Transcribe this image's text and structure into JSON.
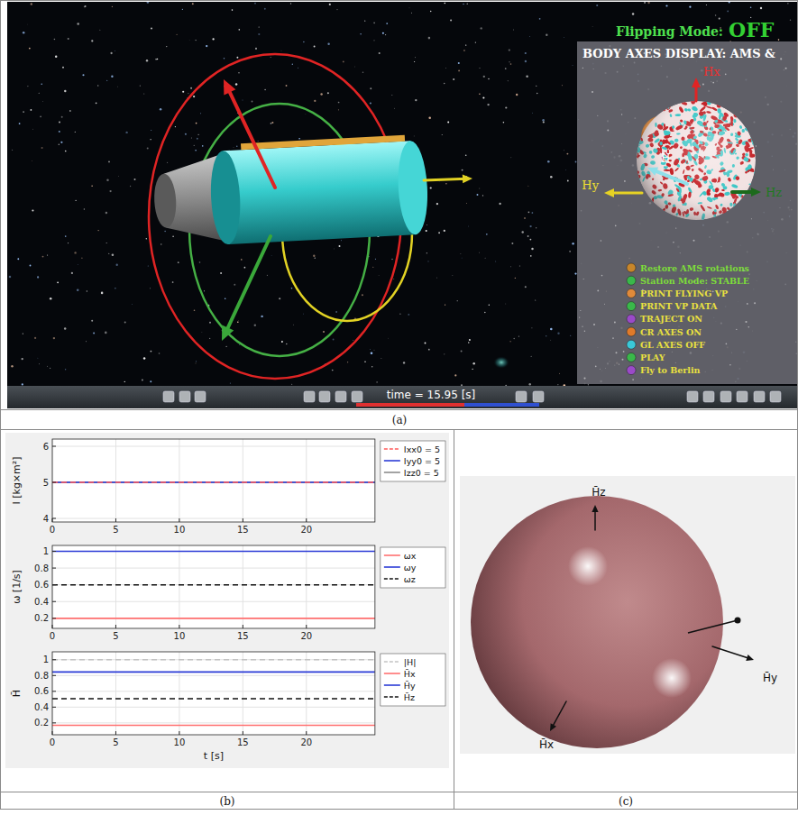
{
  "labels": {
    "a": "(a)",
    "b": "(b)",
    "c": "(c)"
  },
  "screenshot": {
    "flipping_label": "Flipping Mode:",
    "flipping_state": "OFF",
    "time_label": "time = 15.95 [s]",
    "body_axes": {
      "title": "BODY AXES DISPLAY: AMS &",
      "axis_labels": {
        "x": "Hx",
        "y": "Hy",
        "z": "Hz",
        "h": "H"
      },
      "menu": [
        "Restore AMS rotations",
        "Station Mode: STABLE",
        "PRINT FLYING VP",
        "PRINT VP DATA",
        "TRAJECT ON",
        "CR AXES ON",
        "GL AXES OFF",
        "PLAY",
        "Fly to Berlin"
      ]
    }
  },
  "chart_data": [
    {
      "type": "line",
      "ylabel": "I [kg×m²]",
      "x": [
        0,
        25.4
      ],
      "xlim": [
        0,
        25.4
      ],
      "xticks": [
        0,
        5,
        10,
        15,
        20
      ],
      "ylim": [
        3.9,
        6.2
      ],
      "yticks": [
        4,
        5,
        6
      ],
      "grid": true,
      "legend": "right",
      "series": [
        {
          "name": "Ixx0 = 5",
          "color": "#ff5a5a",
          "line_style": "dashed",
          "values": [
            5,
            5
          ]
        },
        {
          "name": "Iyy0 = 5",
          "color": "#2b3bd6",
          "line_style": "solid",
          "values": [
            5,
            5
          ]
        },
        {
          "name": "Izz0 = 5",
          "color": "#8c8c8c",
          "line_style": "solid",
          "values": [
            5,
            5
          ]
        }
      ]
    },
    {
      "type": "line",
      "ylabel": "ω [1/s]",
      "x": [
        0,
        25.4
      ],
      "xlim": [
        0,
        25.4
      ],
      "xticks": [
        0,
        5,
        10,
        15,
        20
      ],
      "ylim": [
        0.08,
        1.07
      ],
      "yticks": [
        0.2,
        0.4,
        0.6,
        0.8,
        1
      ],
      "grid": true,
      "legend": "right",
      "series": [
        {
          "name": "ωx",
          "color": "#ff7070",
          "line_style": "solid",
          "values": [
            0.2,
            0.2
          ]
        },
        {
          "name": "ωy",
          "color": "#2b3bd6",
          "line_style": "solid",
          "values": [
            1,
            1
          ]
        },
        {
          "name": "ωz",
          "color": "#111111",
          "line_style": "dashed",
          "values": [
            0.6,
            0.6
          ]
        }
      ]
    },
    {
      "type": "line",
      "ylabel": "H̄",
      "xlabel": "t [s]",
      "x": [
        0,
        25.4
      ],
      "xlim": [
        0,
        25.4
      ],
      "xticks": [
        0,
        5,
        10,
        15,
        20
      ],
      "ylim": [
        0.05,
        1.1
      ],
      "yticks": [
        0.2,
        0.4,
        0.6,
        0.8,
        1
      ],
      "grid": true,
      "legend": "right",
      "series": [
        {
          "name": "|H|",
          "color": "#c4c4c4",
          "line_style": "dashed",
          "values": [
            1,
            1
          ]
        },
        {
          "name": "H̄x",
          "color": "#ff7070",
          "line_style": "solid",
          "values": [
            0.17,
            0.17
          ]
        },
        {
          "name": "H̄y",
          "color": "#2b3bd6",
          "line_style": "solid",
          "values": [
            0.845,
            0.845
          ]
        },
        {
          "name": "H̄z",
          "color": "#111111",
          "line_style": "dashed",
          "values": [
            0.507,
            0.507
          ]
        }
      ]
    }
  ],
  "sphere": {
    "axis_labels": {
      "z": "H̄z",
      "y": "H̄y",
      "x": "H̄x"
    }
  }
}
